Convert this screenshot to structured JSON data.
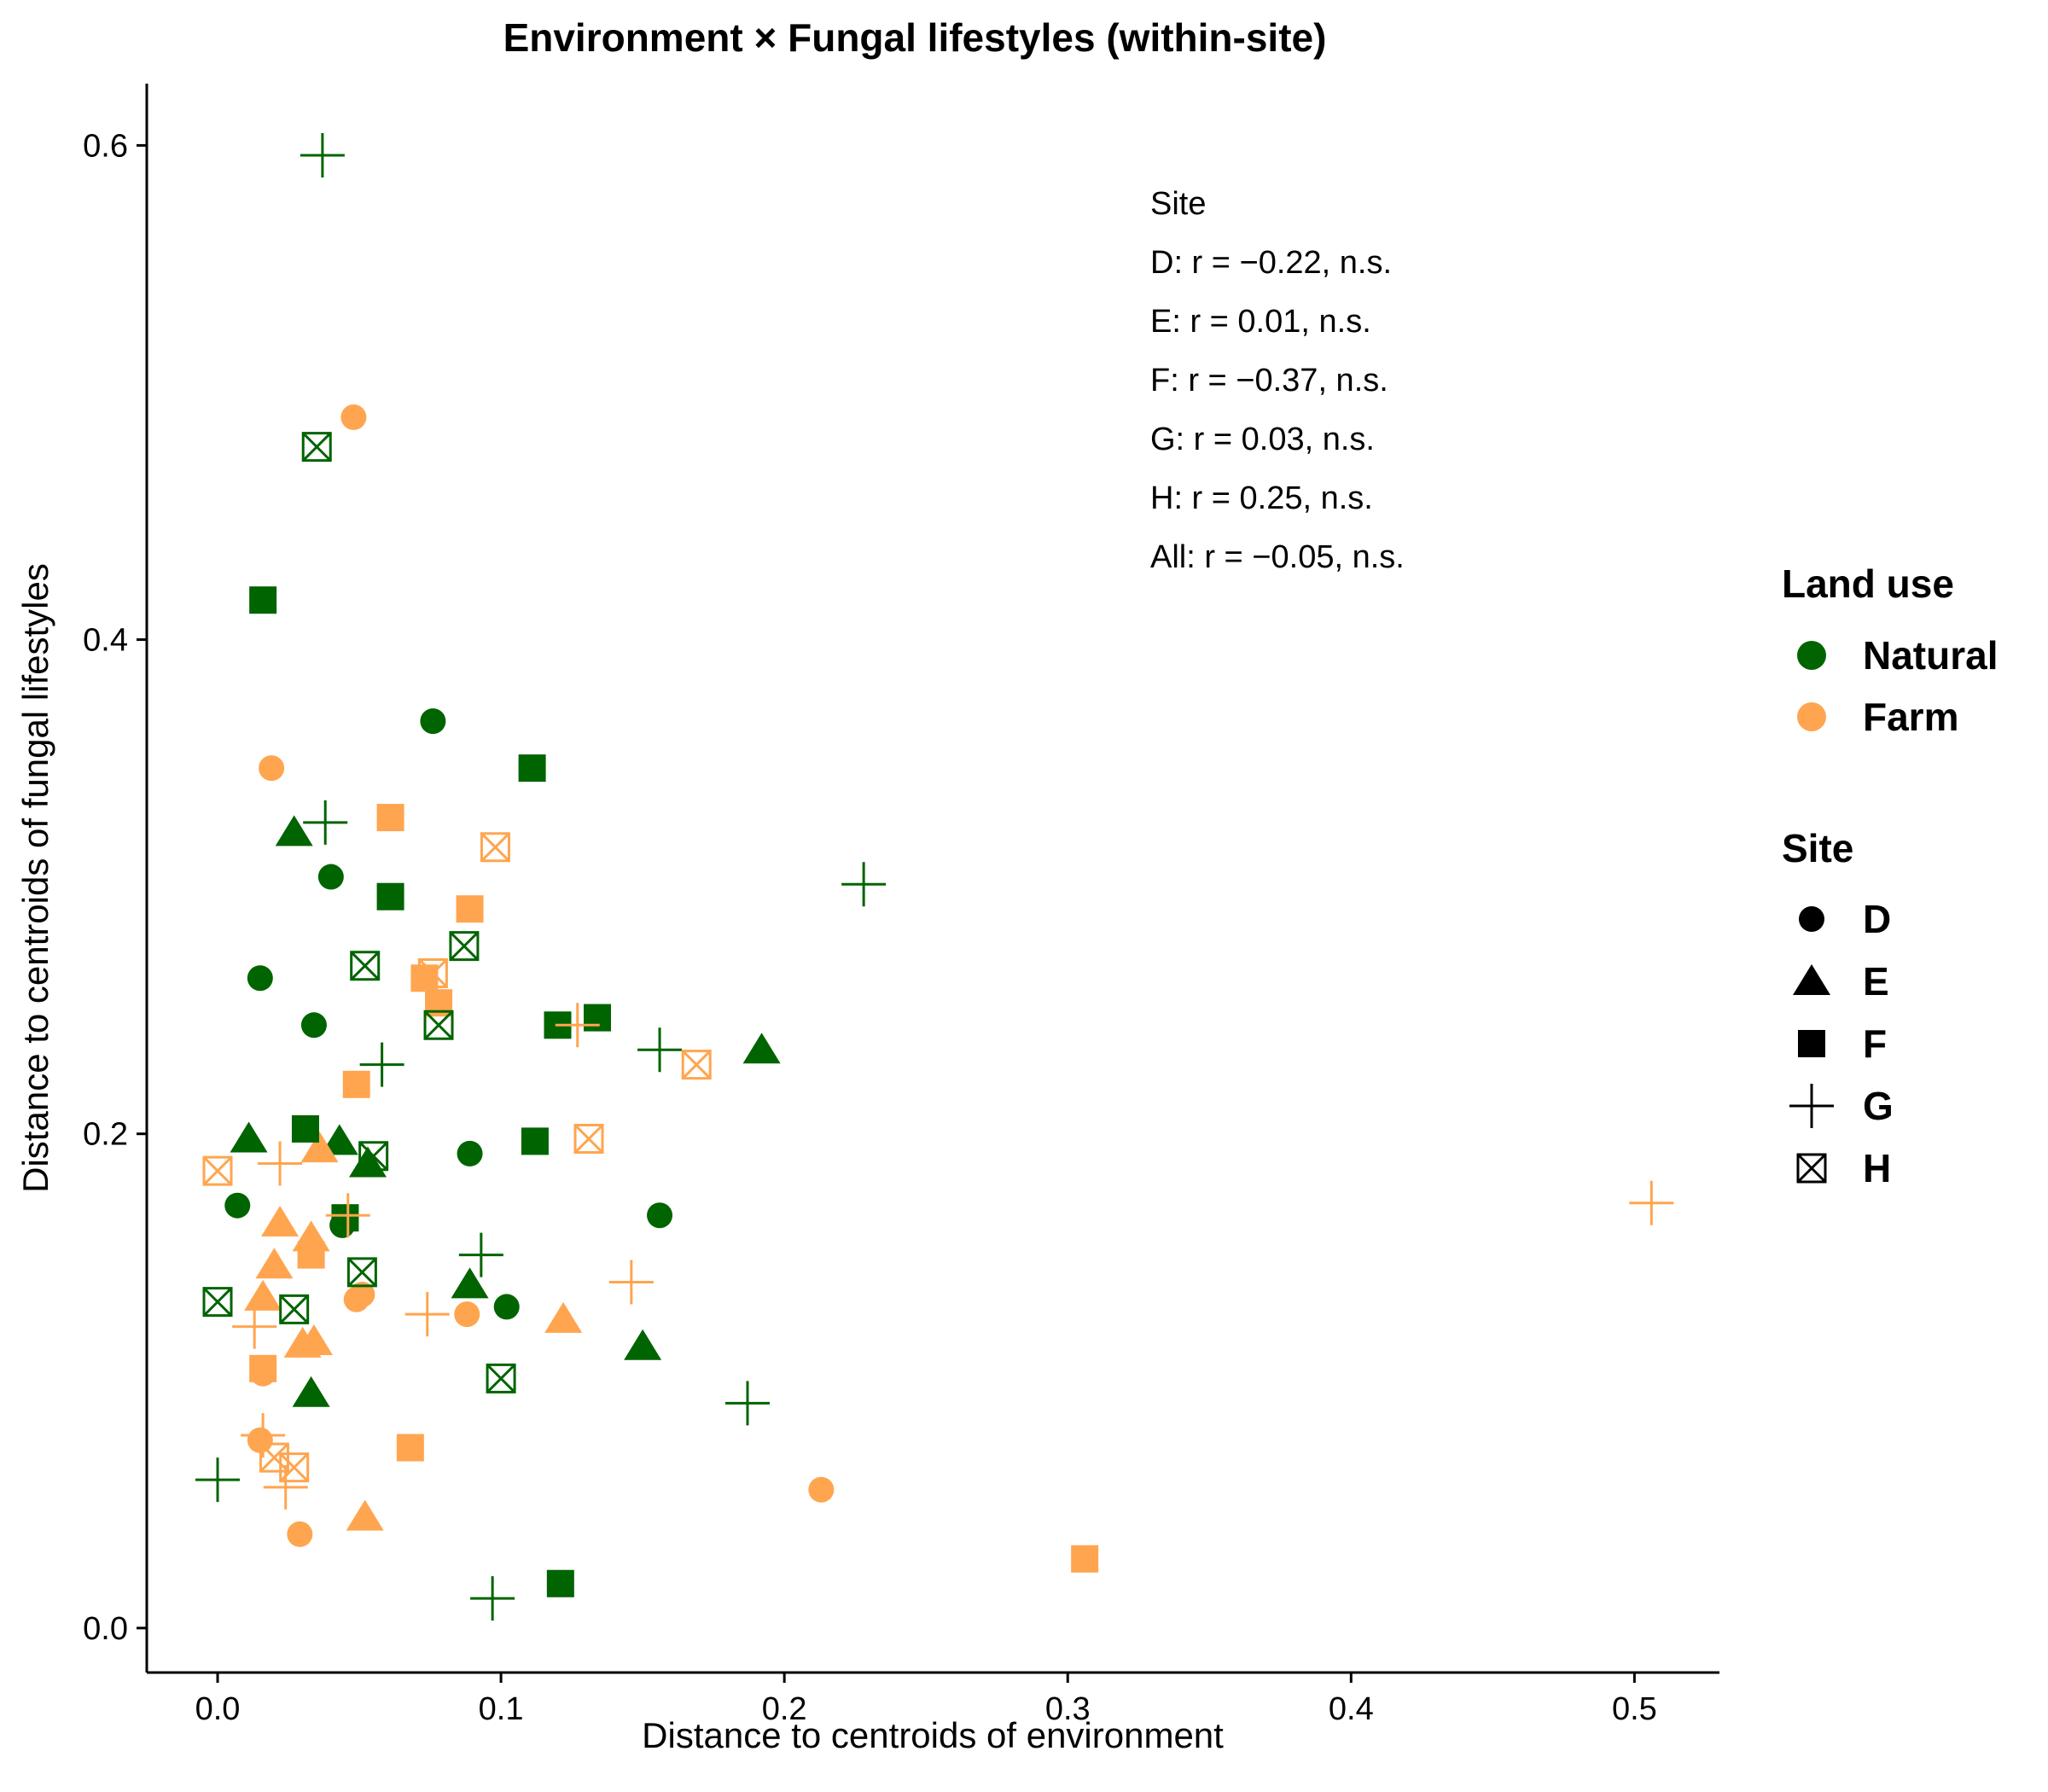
{
  "chart_data": {
    "type": "scatter",
    "title": "Environment × Fungal lifestyles (within-site)",
    "xlabel": "Distance to centroids of environment",
    "ylabel": "Distance to centroids of fungal lifestyles",
    "xlim": [
      -0.025,
      0.53
    ],
    "ylim": [
      -0.018,
      0.625
    ],
    "x_ticks": [
      "0.0",
      "0.1",
      "0.2",
      "0.3",
      "0.4",
      "0.5"
    ],
    "x_tick_values": [
      0.0,
      0.1,
      0.2,
      0.3,
      0.4,
      0.5
    ],
    "y_ticks": [
      "0.0",
      "0.2",
      "0.4",
      "0.6"
    ],
    "y_tick_values": [
      0.0,
      0.2,
      0.4,
      0.6
    ],
    "grid": false,
    "colors": {
      "Natural": "#006400",
      "Farm": "#FFA54F"
    },
    "annotation": {
      "header": "Site",
      "lines": [
        "D: r = −0.22, n.s.",
        "E: r = 0.01, n.s.",
        "F: r = −0.37, n.s.",
        "G: r = 0.03, n.s.",
        "H: r = 0.25, n.s.",
        "All: r = −0.05, n.s."
      ]
    },
    "legend": {
      "placement": "right",
      "color_title": "Land use",
      "color_items": [
        "Natural",
        "Farm"
      ],
      "shape_title": "Site",
      "shape_items": [
        "D",
        "E",
        "F",
        "G",
        "H"
      ]
    },
    "points": [
      {
        "x": 0.076,
        "y": 0.367,
        "land": "Natural",
        "site": "D"
      },
      {
        "x": 0.04,
        "y": 0.304,
        "land": "Natural",
        "site": "D"
      },
      {
        "x": 0.015,
        "y": 0.263,
        "land": "Natural",
        "site": "D"
      },
      {
        "x": 0.034,
        "y": 0.244,
        "land": "Natural",
        "site": "D"
      },
      {
        "x": 0.089,
        "y": 0.192,
        "land": "Natural",
        "site": "D"
      },
      {
        "x": 0.007,
        "y": 0.171,
        "land": "Natural",
        "site": "D"
      },
      {
        "x": 0.156,
        "y": 0.167,
        "land": "Natural",
        "site": "D"
      },
      {
        "x": 0.044,
        "y": 0.163,
        "land": "Natural",
        "site": "D"
      },
      {
        "x": 0.102,
        "y": 0.13,
        "land": "Natural",
        "site": "D"
      },
      {
        "x": 0.048,
        "y": 0.49,
        "land": "Farm",
        "site": "D"
      },
      {
        "x": 0.019,
        "y": 0.348,
        "land": "Farm",
        "site": "D"
      },
      {
        "x": 0.049,
        "y": 0.133,
        "land": "Farm",
        "site": "D"
      },
      {
        "x": 0.051,
        "y": 0.135,
        "land": "Farm",
        "site": "D"
      },
      {
        "x": 0.088,
        "y": 0.127,
        "land": "Farm",
        "site": "D"
      },
      {
        "x": 0.016,
        "y": 0.103,
        "land": "Farm",
        "site": "D"
      },
      {
        "x": 0.015,
        "y": 0.076,
        "land": "Farm",
        "site": "D"
      },
      {
        "x": 0.213,
        "y": 0.056,
        "land": "Farm",
        "site": "D"
      },
      {
        "x": 0.029,
        "y": 0.038,
        "land": "Farm",
        "site": "D"
      },
      {
        "x": 0.027,
        "y": 0.322,
        "land": "Natural",
        "site": "E"
      },
      {
        "x": 0.011,
        "y": 0.198,
        "land": "Natural",
        "site": "E"
      },
      {
        "x": 0.043,
        "y": 0.197,
        "land": "Natural",
        "site": "E"
      },
      {
        "x": 0.053,
        "y": 0.188,
        "land": "Natural",
        "site": "E"
      },
      {
        "x": 0.192,
        "y": 0.234,
        "land": "Natural",
        "site": "E"
      },
      {
        "x": 0.089,
        "y": 0.139,
        "land": "Natural",
        "site": "E"
      },
      {
        "x": 0.15,
        "y": 0.114,
        "land": "Natural",
        "site": "E"
      },
      {
        "x": 0.033,
        "y": 0.095,
        "land": "Natural",
        "site": "E"
      },
      {
        "x": 0.036,
        "y": 0.194,
        "land": "Farm",
        "site": "E"
      },
      {
        "x": 0.022,
        "y": 0.164,
        "land": "Farm",
        "site": "E"
      },
      {
        "x": 0.033,
        "y": 0.158,
        "land": "Farm",
        "site": "E"
      },
      {
        "x": 0.02,
        "y": 0.147,
        "land": "Farm",
        "site": "E"
      },
      {
        "x": 0.016,
        "y": 0.134,
        "land": "Farm",
        "site": "E"
      },
      {
        "x": 0.03,
        "y": 0.115,
        "land": "Farm",
        "site": "E"
      },
      {
        "x": 0.034,
        "y": 0.116,
        "land": "Farm",
        "site": "E"
      },
      {
        "x": 0.122,
        "y": 0.125,
        "land": "Farm",
        "site": "E"
      },
      {
        "x": 0.052,
        "y": 0.045,
        "land": "Farm",
        "site": "E"
      },
      {
        "x": 0.016,
        "y": 0.416,
        "land": "Natural",
        "site": "F"
      },
      {
        "x": 0.111,
        "y": 0.348,
        "land": "Natural",
        "site": "F"
      },
      {
        "x": 0.061,
        "y": 0.296,
        "land": "Natural",
        "site": "F"
      },
      {
        "x": 0.134,
        "y": 0.247,
        "land": "Natural",
        "site": "F"
      },
      {
        "x": 0.12,
        "y": 0.244,
        "land": "Natural",
        "site": "F"
      },
      {
        "x": 0.031,
        "y": 0.202,
        "land": "Natural",
        "site": "F"
      },
      {
        "x": 0.112,
        "y": 0.197,
        "land": "Natural",
        "site": "F"
      },
      {
        "x": 0.045,
        "y": 0.166,
        "land": "Natural",
        "site": "F"
      },
      {
        "x": 0.121,
        "y": 0.018,
        "land": "Natural",
        "site": "F"
      },
      {
        "x": 0.061,
        "y": 0.328,
        "land": "Farm",
        "site": "F"
      },
      {
        "x": 0.089,
        "y": 0.291,
        "land": "Farm",
        "site": "F"
      },
      {
        "x": 0.073,
        "y": 0.263,
        "land": "Farm",
        "site": "F"
      },
      {
        "x": 0.078,
        "y": 0.253,
        "land": "Farm",
        "site": "F"
      },
      {
        "x": 0.049,
        "y": 0.22,
        "land": "Farm",
        "site": "F"
      },
      {
        "x": 0.033,
        "y": 0.151,
        "land": "Farm",
        "site": "F"
      },
      {
        "x": 0.016,
        "y": 0.105,
        "land": "Farm",
        "site": "F"
      },
      {
        "x": 0.068,
        "y": 0.073,
        "land": "Farm",
        "site": "F"
      },
      {
        "x": 0.306,
        "y": 0.028,
        "land": "Farm",
        "site": "F"
      },
      {
        "x": 0.037,
        "y": 0.596,
        "land": "Natural",
        "site": "G"
      },
      {
        "x": 0.038,
        "y": 0.326,
        "land": "Natural",
        "site": "G"
      },
      {
        "x": 0.228,
        "y": 0.301,
        "land": "Natural",
        "site": "G"
      },
      {
        "x": 0.156,
        "y": 0.234,
        "land": "Natural",
        "site": "G"
      },
      {
        "x": 0.058,
        "y": 0.228,
        "land": "Natural",
        "site": "G"
      },
      {
        "x": 0.093,
        "y": 0.151,
        "land": "Natural",
        "site": "G"
      },
      {
        "x": 0.187,
        "y": 0.091,
        "land": "Natural",
        "site": "G"
      },
      {
        "x": 0.0,
        "y": 0.06,
        "land": "Natural",
        "site": "G"
      },
      {
        "x": 0.097,
        "y": 0.012,
        "land": "Natural",
        "site": "G"
      },
      {
        "x": 0.127,
        "y": 0.244,
        "land": "Farm",
        "site": "G"
      },
      {
        "x": 0.022,
        "y": 0.188,
        "land": "Farm",
        "site": "G"
      },
      {
        "x": 0.046,
        "y": 0.167,
        "land": "Farm",
        "site": "G"
      },
      {
        "x": 0.506,
        "y": 0.172,
        "land": "Farm",
        "site": "G"
      },
      {
        "x": 0.146,
        "y": 0.14,
        "land": "Farm",
        "site": "G"
      },
      {
        "x": 0.074,
        "y": 0.127,
        "land": "Farm",
        "site": "G"
      },
      {
        "x": 0.013,
        "y": 0.122,
        "land": "Farm",
        "site": "G"
      },
      {
        "x": 0.016,
        "y": 0.078,
        "land": "Farm",
        "site": "G"
      },
      {
        "x": 0.024,
        "y": 0.057,
        "land": "Farm",
        "site": "G"
      },
      {
        "x": 0.035,
        "y": 0.478,
        "land": "Natural",
        "site": "H"
      },
      {
        "x": 0.087,
        "y": 0.276,
        "land": "Natural",
        "site": "H"
      },
      {
        "x": 0.052,
        "y": 0.268,
        "land": "Natural",
        "site": "H"
      },
      {
        "x": 0.078,
        "y": 0.244,
        "land": "Natural",
        "site": "H"
      },
      {
        "x": 0.055,
        "y": 0.191,
        "land": "Natural",
        "site": "H"
      },
      {
        "x": 0.051,
        "y": 0.144,
        "land": "Natural",
        "site": "H"
      },
      {
        "x": 0.0,
        "y": 0.132,
        "land": "Natural",
        "site": "H"
      },
      {
        "x": 0.027,
        "y": 0.129,
        "land": "Natural",
        "site": "H"
      },
      {
        "x": 0.1,
        "y": 0.101,
        "land": "Natural",
        "site": "H"
      },
      {
        "x": 0.098,
        "y": 0.316,
        "land": "Farm",
        "site": "H"
      },
      {
        "x": 0.076,
        "y": 0.265,
        "land": "Farm",
        "site": "H"
      },
      {
        "x": 0.169,
        "y": 0.228,
        "land": "Farm",
        "site": "H"
      },
      {
        "x": 0.131,
        "y": 0.198,
        "land": "Farm",
        "site": "H"
      },
      {
        "x": 0.0,
        "y": 0.185,
        "land": "Farm",
        "site": "H"
      },
      {
        "x": 0.02,
        "y": 0.069,
        "land": "Farm",
        "site": "H"
      },
      {
        "x": 0.027,
        "y": 0.065,
        "land": "Farm",
        "site": "H"
      }
    ]
  }
}
